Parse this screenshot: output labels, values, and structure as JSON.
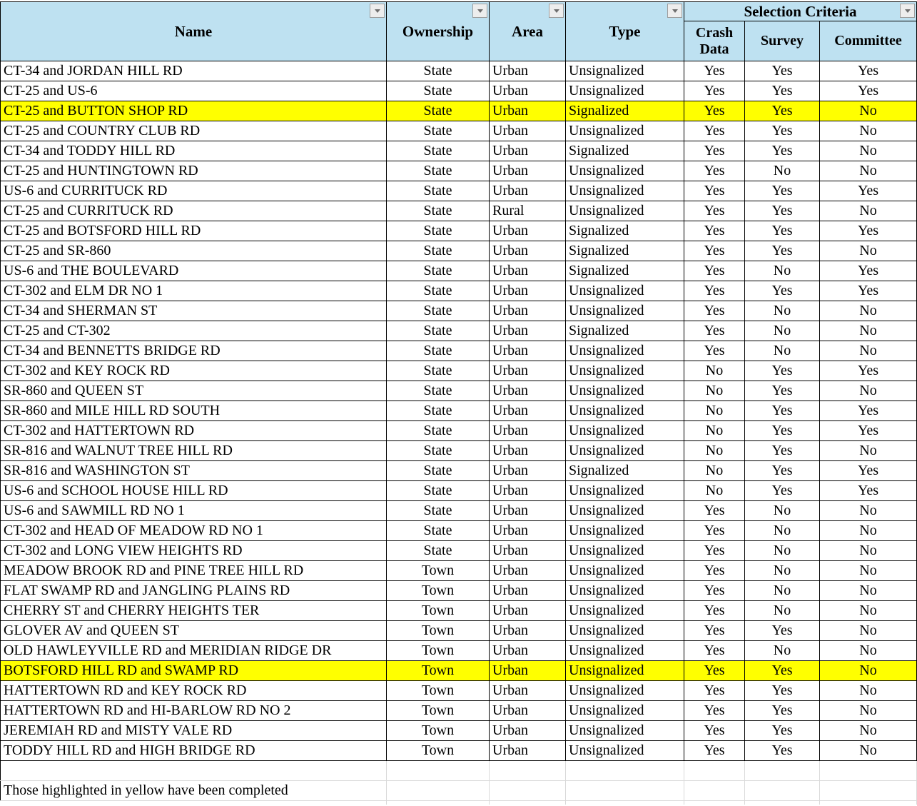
{
  "header": {
    "columns": [
      "Name",
      "Ownership",
      "Area",
      "Type"
    ],
    "selection_criteria": "Selection Criteria",
    "sub_columns": [
      "Crash Data",
      "Survey",
      "Committee"
    ],
    "filter_icons": [
      "chevron-down-icon",
      "chevron-down-icon",
      "chevron-down-icon",
      "chevron-down-icon",
      "chevron-down-icon"
    ]
  },
  "rows": [
    {
      "name": "CT-34 and JORDAN HILL RD",
      "ownership": "State",
      "area": "Urban",
      "type": "Unsignalized",
      "crash_data": "Yes",
      "survey": "Yes",
      "committee": "Yes",
      "highlighted": false
    },
    {
      "name": "CT-25 and US-6",
      "ownership": "State",
      "area": "Urban",
      "type": "Unsignalized",
      "crash_data": "Yes",
      "survey": "Yes",
      "committee": "Yes",
      "highlighted": false
    },
    {
      "name": "CT-25 and BUTTON SHOP RD",
      "ownership": "State",
      "area": "Urban",
      "type": "Signalized",
      "crash_data": "Yes",
      "survey": "Yes",
      "committee": "No",
      "highlighted": true
    },
    {
      "name": "CT-25 and COUNTRY CLUB RD",
      "ownership": "State",
      "area": "Urban",
      "type": "Unsignalized",
      "crash_data": "Yes",
      "survey": "Yes",
      "committee": "No",
      "highlighted": false
    },
    {
      "name": "CT-34 and TODDY HILL RD",
      "ownership": "State",
      "area": "Urban",
      "type": "Signalized",
      "crash_data": "Yes",
      "survey": "Yes",
      "committee": "No",
      "highlighted": false
    },
    {
      "name": "CT-25 and HUNTINGTOWN RD",
      "ownership": "State",
      "area": "Urban",
      "type": "Unsignalized",
      "crash_data": "Yes",
      "survey": "No",
      "committee": "No",
      "highlighted": false
    },
    {
      "name": "US-6 and CURRITUCK RD",
      "ownership": "State",
      "area": "Urban",
      "type": "Unsignalized",
      "crash_data": "Yes",
      "survey": "Yes",
      "committee": "Yes",
      "highlighted": false
    },
    {
      "name": "CT-25 and CURRITUCK RD",
      "ownership": "State",
      "area": "Rural",
      "type": "Unsignalized",
      "crash_data": "Yes",
      "survey": "Yes",
      "committee": "No",
      "highlighted": false
    },
    {
      "name": "CT-25 and BOTSFORD HILL RD",
      "ownership": "State",
      "area": "Urban",
      "type": "Signalized",
      "crash_data": "Yes",
      "survey": "Yes",
      "committee": "Yes",
      "highlighted": false
    },
    {
      "name": "CT-25 and SR-860",
      "ownership": "State",
      "area": "Urban",
      "type": "Signalized",
      "crash_data": "Yes",
      "survey": "Yes",
      "committee": "No",
      "highlighted": false
    },
    {
      "name": "US-6 and THE BOULEVARD",
      "ownership": "State",
      "area": "Urban",
      "type": "Signalized",
      "crash_data": "Yes",
      "survey": "No",
      "committee": "Yes",
      "highlighted": false
    },
    {
      "name": "CT-302 and ELM DR NO 1",
      "ownership": "State",
      "area": "Urban",
      "type": "Unsignalized",
      "crash_data": "Yes",
      "survey": "Yes",
      "committee": "Yes",
      "highlighted": false
    },
    {
      "name": "CT-34 and SHERMAN ST",
      "ownership": "State",
      "area": "Urban",
      "type": "Unsignalized",
      "crash_data": "Yes",
      "survey": "No",
      "committee": "No",
      "highlighted": false
    },
    {
      "name": "CT-25 and CT-302",
      "ownership": "State",
      "area": "Urban",
      "type": "Signalized",
      "crash_data": "Yes",
      "survey": "No",
      "committee": "No",
      "highlighted": false
    },
    {
      "name": "CT-34 and BENNETTS BRIDGE RD",
      "ownership": "State",
      "area": "Urban",
      "type": "Unsignalized",
      "crash_data": "Yes",
      "survey": "No",
      "committee": "No",
      "highlighted": false
    },
    {
      "name": "CT-302 and KEY ROCK RD",
      "ownership": "State",
      "area": "Urban",
      "type": "Unsignalized",
      "crash_data": "No",
      "survey": "Yes",
      "committee": "Yes",
      "highlighted": false
    },
    {
      "name": "SR-860 and QUEEN ST",
      "ownership": "State",
      "area": "Urban",
      "type": "Unsignalized",
      "crash_data": "No",
      "survey": "Yes",
      "committee": "No",
      "highlighted": false
    },
    {
      "name": "SR-860 and MILE HILL RD SOUTH",
      "ownership": "State",
      "area": "Urban",
      "type": "Unsignalized",
      "crash_data": "No",
      "survey": "Yes",
      "committee": "Yes",
      "highlighted": false
    },
    {
      "name": "CT-302 and HATTERTOWN RD",
      "ownership": "State",
      "area": "Urban",
      "type": "Unsignalized",
      "crash_data": "No",
      "survey": "Yes",
      "committee": "Yes",
      "highlighted": false
    },
    {
      "name": "SR-816 and WALNUT TREE HILL RD",
      "ownership": "State",
      "area": "Urban",
      "type": "Unsignalized",
      "crash_data": "No",
      "survey": "Yes",
      "committee": "No",
      "highlighted": false
    },
    {
      "name": "SR-816 and WASHINGTON ST",
      "ownership": "State",
      "area": "Urban",
      "type": "Signalized",
      "crash_data": "No",
      "survey": "Yes",
      "committee": "Yes",
      "highlighted": false
    },
    {
      "name": "US-6 and SCHOOL HOUSE HILL RD",
      "ownership": "State",
      "area": "Urban",
      "type": "Unsignalized",
      "crash_data": "No",
      "survey": "Yes",
      "committee": "Yes",
      "highlighted": false
    },
    {
      "name": "US-6 and SAWMILL RD NO 1",
      "ownership": "State",
      "area": "Urban",
      "type": "Unsignalized",
      "crash_data": "Yes",
      "survey": "No",
      "committee": "No",
      "highlighted": false
    },
    {
      "name": "CT-302 and HEAD OF MEADOW RD NO 1",
      "ownership": "State",
      "area": "Urban",
      "type": "Unsignalized",
      "crash_data": "Yes",
      "survey": "No",
      "committee": "No",
      "highlighted": false
    },
    {
      "name": "CT-302 and LONG VIEW HEIGHTS RD",
      "ownership": "State",
      "area": "Urban",
      "type": "Unsignalized",
      "crash_data": "Yes",
      "survey": "No",
      "committee": "No",
      "highlighted": false
    },
    {
      "name": "MEADOW BROOK RD and PINE TREE HILL RD",
      "ownership": "Town",
      "area": "Urban",
      "type": "Unsignalized",
      "crash_data": "Yes",
      "survey": "No",
      "committee": "No",
      "highlighted": false
    },
    {
      "name": "FLAT SWAMP RD and JANGLING PLAINS RD",
      "ownership": "Town",
      "area": "Urban",
      "type": "Unsignalized",
      "crash_data": "Yes",
      "survey": "No",
      "committee": "No",
      "highlighted": false
    },
    {
      "name": "CHERRY ST and CHERRY HEIGHTS TER",
      "ownership": "Town",
      "area": "Urban",
      "type": "Unsignalized",
      "crash_data": "Yes",
      "survey": "No",
      "committee": "No",
      "highlighted": false
    },
    {
      "name": "GLOVER AV and QUEEN ST",
      "ownership": "Town",
      "area": "Urban",
      "type": "Unsignalized",
      "crash_data": "Yes",
      "survey": "Yes",
      "committee": "No",
      "highlighted": false
    },
    {
      "name": "OLD HAWLEYVILLE RD and MERIDIAN RIDGE DR",
      "ownership": "Town",
      "area": "Urban",
      "type": "Unsignalized",
      "crash_data": "Yes",
      "survey": "No",
      "committee": "No",
      "highlighted": false
    },
    {
      "name": "BOTSFORD HILL RD and SWAMP RD",
      "ownership": "Town",
      "area": "Urban",
      "type": "Unsignalized",
      "crash_data": "Yes",
      "survey": "Yes",
      "committee": "No",
      "highlighted": true
    },
    {
      "name": "HATTERTOWN RD and KEY ROCK RD",
      "ownership": "Town",
      "area": "Urban",
      "type": "Unsignalized",
      "crash_data": "Yes",
      "survey": "Yes",
      "committee": "No",
      "highlighted": false
    },
    {
      "name": "HATTERTOWN RD and HI-BARLOW RD NO 2",
      "ownership": "Town",
      "area": "Urban",
      "type": "Unsignalized",
      "crash_data": "Yes",
      "survey": "Yes",
      "committee": "No",
      "highlighted": false
    },
    {
      "name": "JEREMIAH RD and MISTY VALE RD",
      "ownership": "Town",
      "area": "Urban",
      "type": "Unsignalized",
      "crash_data": "Yes",
      "survey": "Yes",
      "committee": "No",
      "highlighted": false
    },
    {
      "name": "TODDY HILL RD and HIGH BRIDGE RD",
      "ownership": "Town",
      "area": "Urban",
      "type": "Unsignalized",
      "crash_data": "Yes",
      "survey": "Yes",
      "committee": "No",
      "highlighted": false
    }
  ],
  "note": "Those highlighted in yellow have been completed",
  "colors": {
    "header_bg": "#BEE1F1",
    "highlight": "#FFFF00",
    "border": "#000000",
    "gridline": "#D9D9D9",
    "button_bg": "#EDEDED",
    "button_border": "#9E9E9E",
    "arrow": "#6E6E6E"
  }
}
